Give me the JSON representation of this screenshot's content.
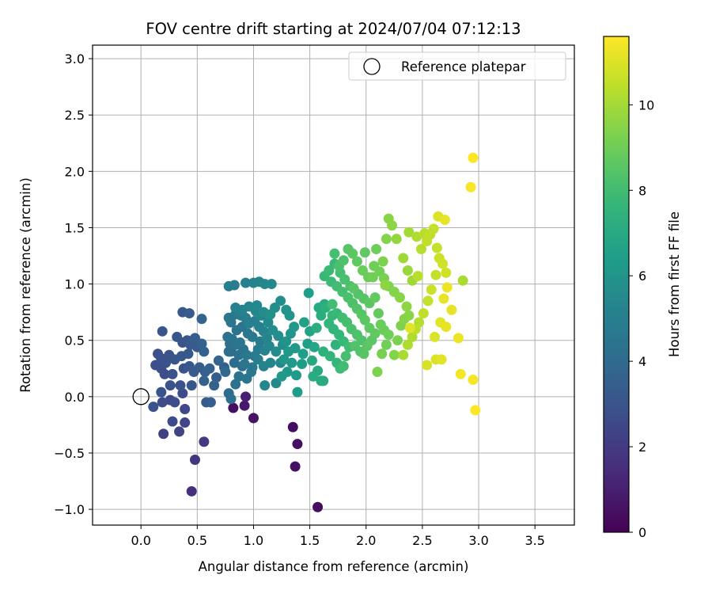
{
  "chart_data": {
    "type": "scatter",
    "title": "FOV centre drift starting at 2024/07/04 07:12:13",
    "xlabel": "Angular distance from reference (arcmin)",
    "ylabel": "Rotation from reference (arcmin)",
    "xlim": [
      -0.43,
      3.85
    ],
    "ylim": [
      -1.14,
      3.12
    ],
    "xticks": [
      0.0,
      0.5,
      1.0,
      1.5,
      2.0,
      2.5,
      3.0,
      3.5
    ],
    "yticks": [
      -1.0,
      -0.5,
      0.0,
      0.5,
      1.0,
      1.5,
      2.0,
      2.5,
      3.0
    ],
    "xtick_labels": [
      "0.0",
      "0.5",
      "1.0",
      "1.5",
      "2.0",
      "2.5",
      "3.0",
      "3.5"
    ],
    "ytick_labels": [
      "−1.0",
      "−0.5",
      "0.0",
      "0.5",
      "1.0",
      "1.5",
      "2.0",
      "2.5",
      "3.0"
    ],
    "grid": true,
    "legend": {
      "position": "top-right",
      "entries": [
        "Reference platepar"
      ]
    },
    "reference_point": {
      "x": 0.0,
      "y": 0.0,
      "label": "Reference platepar"
    },
    "colorbar": {
      "label": "Hours from first FF file",
      "colormap": "viridis",
      "range": [
        0,
        11.6
      ],
      "ticks": [
        0,
        2,
        4,
        6,
        8,
        10
      ],
      "tick_labels": [
        "0",
        "2",
        "4",
        "6",
        "8",
        "10"
      ]
    },
    "points": [
      [
        0.82,
        -0.1,
        0.5
      ],
      [
        1.0,
        -0.19,
        0.6
      ],
      [
        1.35,
        -0.27,
        0.4
      ],
      [
        1.39,
        -0.42,
        0.5
      ],
      [
        1.37,
        -0.62,
        0.5
      ],
      [
        1.57,
        -0.98,
        0.4
      ],
      [
        0.92,
        -0.08,
        0.8
      ],
      [
        0.93,
        0.0,
        1.0
      ],
      [
        0.45,
        -0.84,
        1.6
      ],
      [
        0.48,
        -0.56,
        1.8
      ],
      [
        0.56,
        -0.4,
        2.0
      ],
      [
        0.2,
        -0.33,
        2.2
      ],
      [
        0.34,
        -0.31,
        2.3
      ],
      [
        0.39,
        -0.23,
        2.4
      ],
      [
        0.28,
        -0.22,
        2.6
      ],
      [
        0.39,
        -0.11,
        2.5
      ],
      [
        0.19,
        -0.05,
        2.7
      ],
      [
        0.26,
        -0.03,
        2.5
      ],
      [
        0.3,
        -0.05,
        2.8
      ],
      [
        0.11,
        -0.09,
        2.9
      ],
      [
        0.18,
        0.04,
        3.0
      ],
      [
        0.37,
        0.03,
        2.6
      ],
      [
        0.26,
        0.1,
        3.0
      ],
      [
        0.35,
        0.1,
        2.9
      ],
      [
        0.45,
        0.1,
        3.1
      ],
      [
        0.58,
        -0.05,
        3.3
      ],
      [
        0.62,
        -0.05,
        3.5
      ],
      [
        0.65,
        0.1,
        3.6
      ],
      [
        0.67,
        0.17,
        3.4
      ],
      [
        0.74,
        0.26,
        3.4
      ],
      [
        0.56,
        0.14,
        3.6
      ],
      [
        0.47,
        0.22,
        3.3
      ],
      [
        0.43,
        0.27,
        3.2
      ],
      [
        0.38,
        0.25,
        3.0
      ],
      [
        0.28,
        0.2,
        2.9
      ],
      [
        0.21,
        0.2,
        2.7
      ],
      [
        0.18,
        0.25,
        2.8
      ],
      [
        0.13,
        0.28,
        2.8
      ],
      [
        0.18,
        0.34,
        2.9
      ],
      [
        0.22,
        0.3,
        3.0
      ],
      [
        0.25,
        0.37,
        3.0
      ],
      [
        0.15,
        0.38,
        2.9
      ],
      [
        0.3,
        0.33,
        3.1
      ],
      [
        0.36,
        0.36,
        3.2
      ],
      [
        0.42,
        0.38,
        3.2
      ],
      [
        0.44,
        0.46,
        3.3
      ],
      [
        0.5,
        0.44,
        3.3
      ],
      [
        0.48,
        0.52,
        3.4
      ],
      [
        0.41,
        0.5,
        3.2
      ],
      [
        0.32,
        0.53,
        3.1
      ],
      [
        0.37,
        0.48,
        3.0
      ],
      [
        0.54,
        0.47,
        3.6
      ],
      [
        0.56,
        0.4,
        3.6
      ],
      [
        0.52,
        0.26,
        3.4
      ],
      [
        0.57,
        0.22,
        3.5
      ],
      [
        0.61,
        0.25,
        3.6
      ],
      [
        0.69,
        0.32,
        3.8
      ],
      [
        0.75,
        0.22,
        3.9
      ],
      [
        0.8,
        0.4,
        4.0
      ],
      [
        0.19,
        0.58,
        3.1
      ],
      [
        0.37,
        0.75,
        3.2
      ],
      [
        0.43,
        0.74,
        3.3
      ],
      [
        0.54,
        0.69,
        3.7
      ],
      [
        0.8,
        -0.02,
        4.3
      ],
      [
        0.78,
        0.03,
        4.1
      ],
      [
        0.84,
        0.11,
        4.3
      ],
      [
        0.87,
        0.18,
        4.4
      ],
      [
        0.94,
        0.16,
        4.5
      ],
      [
        0.98,
        0.22,
        4.6
      ],
      [
        0.9,
        0.27,
        4.2
      ],
      [
        0.83,
        0.3,
        4.1
      ],
      [
        0.78,
        0.4,
        4.2
      ],
      [
        0.79,
        0.47,
        4.2
      ],
      [
        0.77,
        0.53,
        4.3
      ],
      [
        0.81,
        0.51,
        4.4
      ],
      [
        0.84,
        0.46,
        4.4
      ],
      [
        0.88,
        0.48,
        4.5
      ],
      [
        0.91,
        0.42,
        4.4
      ],
      [
        0.94,
        0.37,
        4.6
      ],
      [
        0.87,
        0.37,
        4.3
      ],
      [
        0.92,
        0.29,
        4.5
      ],
      [
        0.99,
        0.26,
        4.6
      ],
      [
        1.01,
        0.36,
        4.7
      ],
      [
        1.04,
        0.42,
        4.8
      ],
      [
        1.06,
        0.49,
        4.8
      ],
      [
        0.99,
        0.53,
        4.7
      ],
      [
        0.95,
        0.56,
        4.6
      ],
      [
        0.9,
        0.62,
        4.5
      ],
      [
        0.85,
        0.59,
        4.4
      ],
      [
        0.8,
        0.66,
        4.5
      ],
      [
        0.78,
        0.7,
        4.5
      ],
      [
        0.84,
        0.73,
        4.6
      ],
      [
        0.89,
        0.72,
        4.8
      ],
      [
        0.93,
        0.7,
        4.9
      ],
      [
        0.96,
        0.65,
        5.0
      ],
      [
        1.01,
        0.67,
        5.0
      ],
      [
        1.05,
        0.62,
        5.1
      ],
      [
        1.09,
        0.58,
        5.2
      ],
      [
        1.12,
        0.52,
        5.3
      ],
      [
        1.14,
        0.45,
        5.3
      ],
      [
        1.1,
        0.41,
        5.2
      ],
      [
        1.04,
        0.33,
        5.0
      ],
      [
        1.09,
        0.27,
        5.2
      ],
      [
        1.15,
        0.3,
        5.3
      ],
      [
        1.1,
        0.1,
        5.4
      ],
      [
        1.2,
        0.12,
        5.5
      ],
      [
        1.24,
        0.3,
        5.5
      ],
      [
        1.2,
        0.4,
        5.6
      ],
      [
        1.26,
        0.46,
        5.6
      ],
      [
        1.22,
        0.54,
        5.7
      ],
      [
        1.17,
        0.59,
        5.6
      ],
      [
        1.13,
        0.66,
        5.5
      ],
      [
        1.07,
        0.72,
        5.4
      ],
      [
        1.02,
        0.76,
        5.3
      ],
      [
        0.96,
        0.8,
        5.3
      ],
      [
        0.9,
        0.77,
        5.2
      ],
      [
        0.84,
        0.79,
        5.1
      ],
      [
        0.78,
        0.98,
        4.9
      ],
      [
        0.83,
        0.99,
        4.9
      ],
      [
        0.93,
        1.01,
        5.1
      ],
      [
        1.0,
        1.01,
        5.2
      ],
      [
        1.05,
        1.02,
        5.3
      ],
      [
        1.1,
        1.0,
        5.4
      ],
      [
        1.16,
        1.0,
        5.5
      ],
      [
        1.03,
        0.81,
        5.5
      ],
      [
        1.09,
        0.75,
        5.6
      ],
      [
        1.15,
        0.73,
        5.8
      ],
      [
        1.19,
        0.79,
        5.7
      ],
      [
        1.24,
        0.85,
        5.7
      ],
      [
        1.29,
        0.77,
        5.9
      ],
      [
        1.32,
        0.72,
        6.0
      ],
      [
        1.36,
        0.62,
        6.1
      ],
      [
        1.33,
        0.56,
        6.0
      ],
      [
        1.29,
        0.49,
        6.0
      ],
      [
        1.31,
        0.4,
        6.1
      ],
      [
        1.37,
        0.43,
        6.2
      ],
      [
        1.27,
        0.33,
        6.1
      ],
      [
        1.34,
        0.3,
        6.2
      ],
      [
        1.3,
        0.22,
        6.1
      ],
      [
        1.25,
        0.18,
        6.2
      ],
      [
        1.38,
        0.19,
        6.3
      ],
      [
        1.43,
        0.29,
        6.4
      ],
      [
        1.39,
        0.04,
        6.4
      ],
      [
        1.44,
        0.38,
        6.5
      ],
      [
        1.48,
        0.47,
        6.5
      ],
      [
        1.45,
        0.66,
        6.6
      ],
      [
        1.49,
        0.92,
        6.5
      ],
      [
        1.5,
        0.58,
        6.7
      ],
      [
        1.54,
        0.44,
        6.8
      ],
      [
        1.52,
        0.32,
        6.9
      ],
      [
        1.57,
        0.23,
        7.0
      ],
      [
        1.53,
        0.18,
        7.1
      ],
      [
        1.6,
        0.14,
        7.0
      ],
      [
        1.62,
        0.14,
        7.1
      ],
      [
        1.56,
        0.61,
        7.2
      ],
      [
        1.6,
        0.72,
        7.2
      ],
      [
        1.64,
        0.79,
        7.3
      ],
      [
        1.58,
        0.79,
        7.0
      ],
      [
        1.63,
        0.82,
        7.1
      ],
      [
        1.62,
        0.4,
        7.4
      ],
      [
        1.68,
        0.36,
        7.6
      ],
      [
        1.73,
        0.46,
        7.5
      ],
      [
        1.74,
        0.3,
        7.7
      ],
      [
        1.77,
        0.25,
        7.9
      ],
      [
        1.8,
        0.27,
        8.0
      ],
      [
        1.82,
        0.36,
        8.1
      ],
      [
        1.85,
        0.44,
        8.0
      ],
      [
        1.8,
        0.49,
        7.8
      ],
      [
        1.76,
        0.55,
        7.7
      ],
      [
        1.71,
        0.6,
        7.6
      ],
      [
        1.67,
        0.65,
        7.6
      ],
      [
        1.7,
        0.72,
        7.7
      ],
      [
        1.74,
        0.74,
        7.8
      ],
      [
        1.79,
        0.7,
        8.0
      ],
      [
        1.83,
        0.66,
        8.1
      ],
      [
        1.87,
        0.6,
        8.2
      ],
      [
        1.92,
        0.55,
        8.3
      ],
      [
        1.96,
        0.5,
        8.3
      ],
      [
        1.9,
        0.45,
        8.4
      ],
      [
        1.95,
        0.4,
        8.4
      ],
      [
        1.98,
        0.38,
        8.5
      ],
      [
        2.01,
        0.45,
        8.6
      ],
      [
        2.05,
        0.5,
        8.6
      ],
      [
        2.08,
        0.56,
        8.7
      ],
      [
        2.03,
        0.61,
        8.7
      ],
      [
        1.99,
        0.68,
        8.6
      ],
      [
        1.96,
        0.73,
        8.5
      ],
      [
        1.92,
        0.78,
        8.4
      ],
      [
        1.88,
        0.83,
        8.3
      ],
      [
        1.84,
        0.88,
        8.2
      ],
      [
        1.79,
        0.93,
        8.1
      ],
      [
        1.74,
        0.98,
        8.0
      ],
      [
        1.69,
        1.02,
        7.9
      ],
      [
        1.63,
        1.07,
        7.8
      ],
      [
        1.67,
        1.12,
        7.9
      ],
      [
        1.72,
        1.18,
        7.8
      ],
      [
        1.77,
        1.1,
        8.1
      ],
      [
        1.81,
        1.04,
        8.2
      ],
      [
        1.86,
        0.98,
        8.3
      ],
      [
        1.93,
        0.91,
        8.4
      ],
      [
        1.98,
        0.87,
        8.5
      ],
      [
        2.03,
        0.83,
        8.6
      ],
      [
        2.08,
        0.88,
        8.8
      ],
      [
        2.11,
        0.74,
        8.8
      ],
      [
        2.13,
        0.64,
        8.9
      ],
      [
        2.16,
        0.59,
        8.9
      ],
      [
        2.2,
        0.55,
        9.0
      ],
      [
        2.18,
        0.46,
        9.1
      ],
      [
        2.14,
        0.38,
        9.2
      ],
      [
        2.1,
        0.22,
        9.3
      ],
      [
        2.25,
        0.37,
        9.4
      ],
      [
        2.28,
        0.5,
        9.3
      ],
      [
        2.31,
        0.63,
        9.3
      ],
      [
        2.34,
        0.69,
        9.4
      ],
      [
        2.38,
        0.72,
        9.5
      ],
      [
        2.36,
        0.8,
        9.6
      ],
      [
        2.3,
        0.88,
        9.5
      ],
      [
        2.25,
        0.93,
        9.4
      ],
      [
        2.2,
        0.98,
        9.3
      ],
      [
        2.16,
        1.05,
        9.2
      ],
      [
        2.12,
        1.11,
        9.1
      ],
      [
        2.07,
        1.16,
        9.0
      ],
      [
        2.02,
        1.06,
        8.9
      ],
      [
        1.97,
        1.12,
        8.9
      ],
      [
        1.92,
        1.2,
        8.7
      ],
      [
        1.88,
        1.27,
        8.6
      ],
      [
        1.84,
        1.31,
        8.5
      ],
      [
        1.8,
        1.21,
        8.3
      ],
      [
        1.76,
        1.16,
        8.2
      ],
      [
        1.72,
        1.27,
        8.1
      ],
      [
        1.99,
        1.28,
        8.7
      ],
      [
        2.09,
        1.31,
        9.0
      ],
      [
        2.15,
        1.2,
        9.3
      ],
      [
        2.18,
        1.4,
        9.4
      ],
      [
        2.2,
        1.58,
        9.5
      ],
      [
        2.23,
        1.52,
        9.6
      ],
      [
        2.27,
        1.4,
        9.7
      ],
      [
        2.33,
        1.23,
        9.9
      ],
      [
        2.37,
        1.12,
        9.8
      ],
      [
        2.41,
        1.03,
        9.9
      ],
      [
        2.38,
        1.46,
        10.0
      ],
      [
        2.45,
        1.42,
        10.2
      ],
      [
        2.49,
        1.31,
        10.3
      ],
      [
        2.52,
        1.45,
        10.4
      ],
      [
        2.54,
        1.38,
        10.5
      ],
      [
        2.57,
        1.44,
        10.5
      ],
      [
        2.6,
        1.49,
        10.6
      ],
      [
        2.63,
        1.32,
        10.6
      ],
      [
        2.65,
        1.23,
        10.7
      ],
      [
        2.68,
        1.18,
        10.8
      ],
      [
        2.71,
        1.1,
        10.8
      ],
      [
        2.62,
        1.08,
        10.6
      ],
      [
        2.58,
        0.95,
        10.7
      ],
      [
        2.55,
        0.85,
        10.6
      ],
      [
        2.51,
        0.74,
        10.5
      ],
      [
        2.47,
        0.66,
        10.3
      ],
      [
        2.44,
        0.6,
        10.4
      ],
      [
        2.41,
        0.53,
        10.2
      ],
      [
        2.37,
        0.46,
        10.2
      ],
      [
        2.33,
        0.37,
        10.1
      ],
      [
        2.54,
        0.28,
        10.9
      ],
      [
        2.62,
        0.33,
        11.0
      ],
      [
        2.67,
        0.33,
        11.1
      ],
      [
        2.61,
        0.53,
        11.0
      ],
      [
        2.66,
        0.66,
        11.1
      ],
      [
        2.71,
        0.62,
        11.2
      ],
      [
        2.69,
        0.87,
        11.2
      ],
      [
        2.72,
        0.97,
        11.3
      ],
      [
        2.76,
        0.77,
        11.2
      ],
      [
        2.82,
        0.52,
        11.3
      ],
      [
        2.84,
        0.2,
        11.4
      ],
      [
        2.95,
        0.15,
        11.5
      ],
      [
        2.97,
        -0.12,
        11.6
      ],
      [
        2.93,
        1.86,
        11.5
      ],
      [
        2.95,
        2.12,
        11.6
      ],
      [
        2.64,
        1.6,
        11.0
      ],
      [
        2.7,
        1.57,
        11.2
      ],
      [
        2.46,
        1.07,
        10.4
      ],
      [
        2.86,
        1.03,
        10.1
      ],
      [
        2.39,
        0.61,
        11.1
      ],
      [
        2.17,
        0.99,
        9.6
      ],
      [
        2.06,
        1.06,
        9.1
      ],
      [
        1.7,
        0.82,
        8.0
      ],
      [
        1.89,
        0.96,
        8.5
      ]
    ]
  }
}
